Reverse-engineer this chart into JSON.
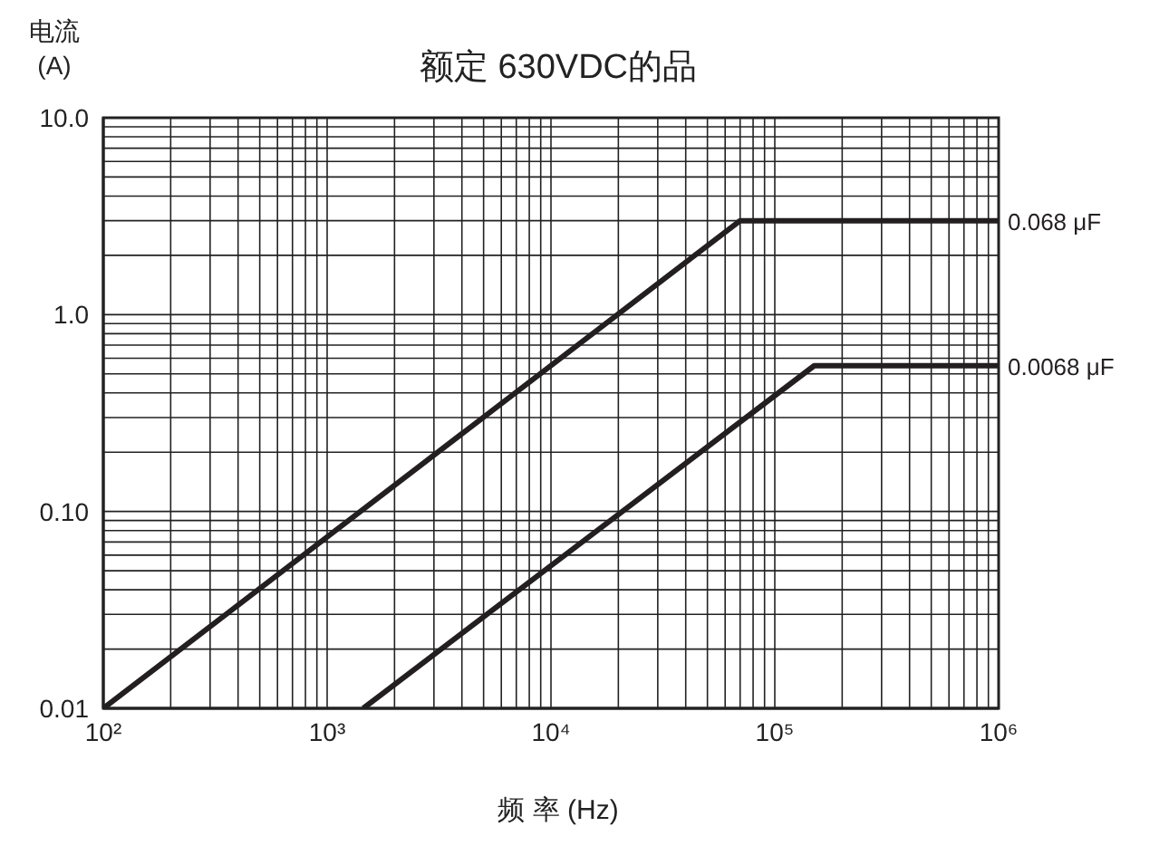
{
  "chart_data": {
    "type": "line",
    "title": "额定 630VDC的品",
    "xlabel": "频 率 (Hz)",
    "ylabel": "电流\n(A)",
    "log": "xy",
    "grid": true,
    "marker": "none",
    "line_style": "solid",
    "xlim": [
      100,
      1000000
    ],
    "ylim": [
      0.01,
      10
    ],
    "xticks": [
      {
        "value": 100,
        "label": "10²"
      },
      {
        "value": 200,
        "label": null
      },
      {
        "value": 300,
        "label": null
      },
      {
        "value": 400,
        "label": null
      },
      {
        "value": 500,
        "label": null
      },
      {
        "value": 600,
        "label": null
      },
      {
        "value": 700,
        "label": null
      },
      {
        "value": 800,
        "label": null
      },
      {
        "value": 900,
        "label": null
      },
      {
        "value": 1000,
        "label": "10³"
      },
      {
        "value": 2000,
        "label": null
      },
      {
        "value": 3000,
        "label": null
      },
      {
        "value": 4000,
        "label": null
      },
      {
        "value": 5000,
        "label": null
      },
      {
        "value": 6000,
        "label": null
      },
      {
        "value": 7000,
        "label": null
      },
      {
        "value": 8000,
        "label": null
      },
      {
        "value": 9000,
        "label": null
      },
      {
        "value": 10000,
        "label": "10⁴"
      },
      {
        "value": 20000,
        "label": null
      },
      {
        "value": 30000,
        "label": null
      },
      {
        "value": 40000,
        "label": null
      },
      {
        "value": 50000,
        "label": null
      },
      {
        "value": 60000,
        "label": null
      },
      {
        "value": 70000,
        "label": null
      },
      {
        "value": 80000,
        "label": null
      },
      {
        "value": 90000,
        "label": null
      },
      {
        "value": 100000,
        "label": "10⁵"
      },
      {
        "value": 200000,
        "label": null
      },
      {
        "value": 300000,
        "label": null
      },
      {
        "value": 400000,
        "label": null
      },
      {
        "value": 500000,
        "label": null
      },
      {
        "value": 600000,
        "label": null
      },
      {
        "value": 700000,
        "label": null
      },
      {
        "value": 800000,
        "label": null
      },
      {
        "value": 900000,
        "label": null
      },
      {
        "value": 1000000,
        "label": "10⁶"
      }
    ],
    "yticks": [
      {
        "value": 0.01,
        "label": "0.01"
      },
      {
        "value": 0.02,
        "label": null
      },
      {
        "value": 0.03,
        "label": null
      },
      {
        "value": 0.04,
        "label": null
      },
      {
        "value": 0.05,
        "label": null
      },
      {
        "value": 0.06,
        "label": null
      },
      {
        "value": 0.07,
        "label": null
      },
      {
        "value": 0.08,
        "label": null
      },
      {
        "value": 0.09,
        "label": null
      },
      {
        "value": 0.1,
        "label": "0.10"
      },
      {
        "value": 0.2,
        "label": null
      },
      {
        "value": 0.3,
        "label": null
      },
      {
        "value": 0.4,
        "label": null
      },
      {
        "value": 0.5,
        "label": null
      },
      {
        "value": 0.6,
        "label": null
      },
      {
        "value": 0.7,
        "label": null
      },
      {
        "value": 0.8,
        "label": null
      },
      {
        "value": 0.9,
        "label": null
      },
      {
        "value": 1,
        "label": "1.0"
      },
      {
        "value": 2,
        "label": null
      },
      {
        "value": 3,
        "label": null
      },
      {
        "value": 4,
        "label": null
      },
      {
        "value": 5,
        "label": null
      },
      {
        "value": 6,
        "label": null
      },
      {
        "value": 7,
        "label": null
      },
      {
        "value": 8,
        "label": null
      },
      {
        "value": 9,
        "label": null
      },
      {
        "value": 10,
        "label": "10.0"
      }
    ],
    "series": [
      {
        "name": "0.068 μF",
        "color": "#231f20",
        "x": [
          100,
          70000,
          1000000
        ],
        "values": [
          0.01,
          3.0,
          3.0
        ]
      },
      {
        "name": "0.0068 μF",
        "color": "#231f20",
        "x": [
          1450,
          150000,
          1000000
        ],
        "values": [
          0.01,
          0.55,
          0.55
        ]
      }
    ]
  }
}
